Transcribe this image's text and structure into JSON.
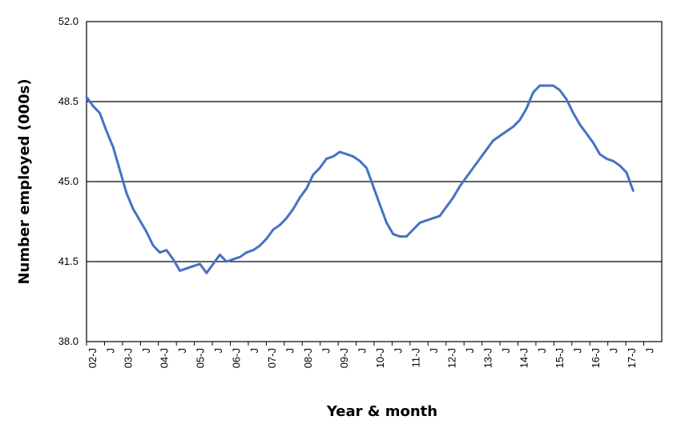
{
  "chart_data": {
    "type": "line",
    "title": "",
    "xlabel": "Year & month",
    "ylabel": "Number employed (000s)",
    "ylim": [
      38.0,
      52.0
    ],
    "yticks": [
      "38.0",
      "41.5",
      "45.0",
      "48.5",
      "52.0"
    ],
    "grid": "horizontal",
    "legend": "none",
    "line_color": "#4472c4",
    "xtick_labels": [
      "02-J",
      "J",
      "03-J",
      "J",
      "04-J",
      "J",
      "05-J",
      "J",
      "06-J",
      "J",
      "07-J",
      "J",
      "08-J",
      "J",
      "09-J",
      "J",
      "10-J",
      "J",
      "11-J",
      "J",
      "12-J",
      "J",
      "13-J",
      "J",
      "14-J",
      "J",
      "15-J",
      "J",
      "16-J",
      "J",
      "17-J",
      "J"
    ],
    "series": [
      {
        "values": [
          48.7,
          48.3,
          48.0,
          47.2,
          46.5,
          45.5,
          44.5,
          43.8,
          43.3,
          42.8,
          42.2,
          41.9,
          42.0,
          41.6,
          41.1,
          41.2,
          41.3,
          41.4,
          41.0,
          41.4,
          41.8,
          41.5,
          41.6,
          41.7,
          41.9,
          42.0,
          42.2,
          42.5,
          42.9,
          43.1,
          43.4,
          43.8,
          44.3,
          44.7,
          45.3,
          45.6,
          46.0,
          46.1,
          46.3,
          46.2,
          46.1,
          45.9,
          45.6,
          44.8,
          44.0,
          43.2,
          42.7,
          42.6,
          42.6,
          42.9,
          43.2,
          43.3,
          43.4,
          43.5,
          43.9,
          44.3,
          44.8,
          45.2,
          45.6,
          46.0,
          46.4,
          46.8,
          47.0,
          47.2,
          47.4,
          47.7,
          48.2,
          48.9,
          49.2,
          49.2,
          49.2,
          49.0,
          48.6,
          48.0,
          47.5,
          47.1,
          46.7,
          46.2,
          46.0,
          45.9,
          45.7,
          45.4,
          44.6
        ]
      }
    ]
  }
}
